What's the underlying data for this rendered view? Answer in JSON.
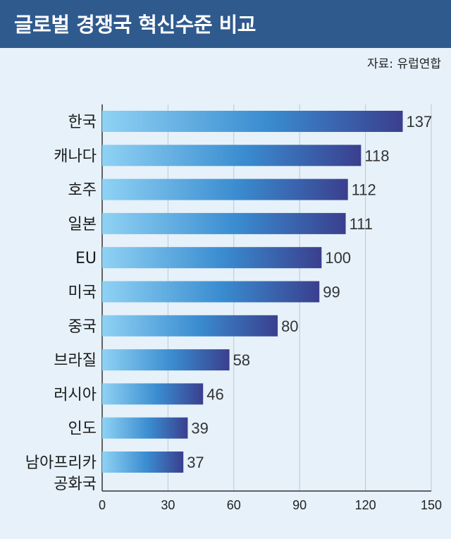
{
  "header": {
    "title": "글로벌 경쟁국 혁신수준 비교"
  },
  "source": "자료: 유럽연합",
  "chart_data": {
    "type": "bar",
    "orientation": "horizontal",
    "title": "글로벌 경쟁국 혁신수준 비교",
    "categories": [
      "한국",
      "캐나다",
      "호주",
      "일본",
      "EU",
      "미국",
      "중국",
      "브라질",
      "러시아",
      "인도",
      "남아프리카\n공화국"
    ],
    "values": [
      137,
      118,
      112,
      111,
      100,
      99,
      80,
      58,
      46,
      39,
      37
    ],
    "xlim": [
      0,
      150
    ],
    "xticks": [
      0,
      30,
      60,
      90,
      120,
      150
    ],
    "grid": true,
    "colors": {
      "bar_start": "#8fd2f4",
      "bar_mid": "#3a8cd0",
      "bar_end": "#3a3f8e"
    }
  }
}
